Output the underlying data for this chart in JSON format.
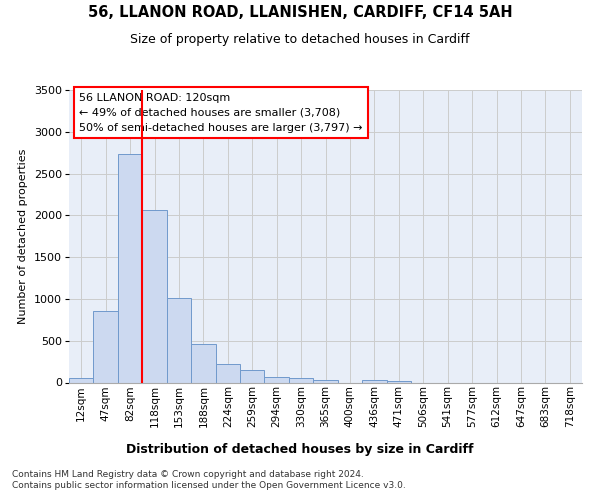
{
  "title1": "56, LLANON ROAD, LLANISHEN, CARDIFF, CF14 5AH",
  "title2": "Size of property relative to detached houses in Cardiff",
  "xlabel": "Distribution of detached houses by size in Cardiff",
  "ylabel": "Number of detached properties",
  "categories": [
    "12sqm",
    "47sqm",
    "82sqm",
    "118sqm",
    "153sqm",
    "188sqm",
    "224sqm",
    "259sqm",
    "294sqm",
    "330sqm",
    "365sqm",
    "400sqm",
    "436sqm",
    "471sqm",
    "506sqm",
    "541sqm",
    "577sqm",
    "612sqm",
    "647sqm",
    "683sqm",
    "718sqm"
  ],
  "values": [
    55,
    850,
    2730,
    2060,
    1010,
    455,
    225,
    145,
    65,
    55,
    30,
    0,
    30,
    15,
    0,
    0,
    0,
    0,
    0,
    0,
    0
  ],
  "bar_color": "#ccd9f0",
  "bar_edge_color": "#7099cc",
  "grid_color": "#cccccc",
  "background_color": "#e8eef8",
  "vline_color": "red",
  "vline_at_index": 3,
  "annotation_line1": "56 LLANON ROAD: 120sqm",
  "annotation_line2": "← 49% of detached houses are smaller (3,708)",
  "annotation_line3": "50% of semi-detached houses are larger (3,797) →",
  "ylim": [
    0,
    3500
  ],
  "yticks": [
    0,
    500,
    1000,
    1500,
    2000,
    2500,
    3000,
    3500
  ],
  "footnote1": "Contains HM Land Registry data © Crown copyright and database right 2024.",
  "footnote2": "Contains public sector information licensed under the Open Government Licence v3.0."
}
